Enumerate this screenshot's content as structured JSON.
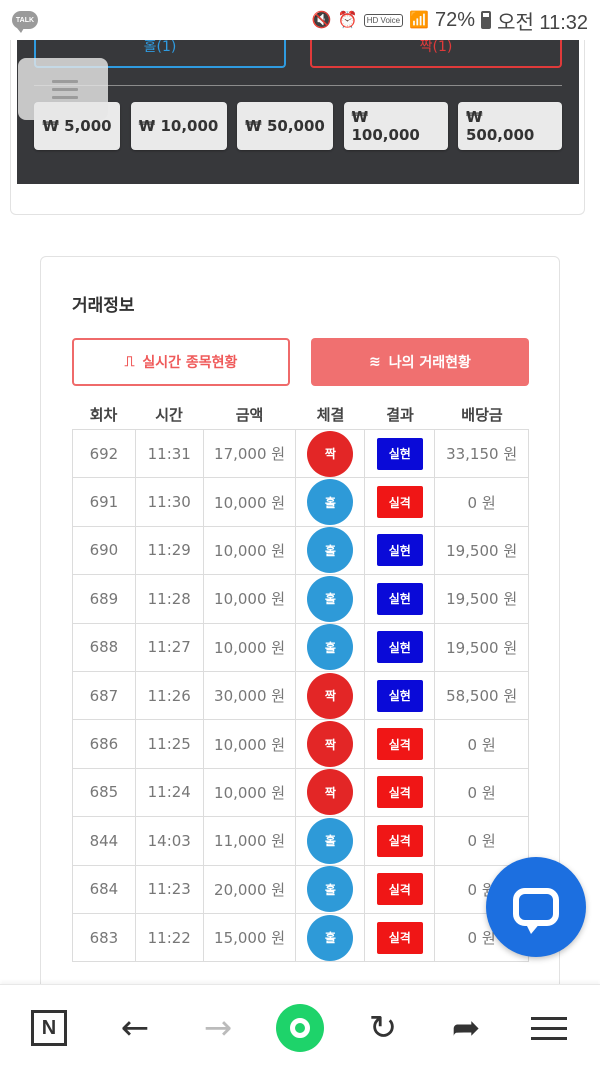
{
  "status_bar": {
    "app_badge": "TALK",
    "hd_label": "HD Voice",
    "battery": "72%",
    "time": "오전 11:32"
  },
  "bet_panel": {
    "odd_label": "홀(1)",
    "even_label": "짝(1)",
    "amounts": [
      "₩ 5,000",
      "₩ 10,000",
      "₩ 50,000",
      "₩ 100,000",
      "₩ 500,000"
    ]
  },
  "trade_info": {
    "title": "거래정보",
    "tab_live": "실시간 종목현황",
    "tab_mine": "나의 거래현황",
    "columns": [
      "회차",
      "시간",
      "금액",
      "체결",
      "결과",
      "배당금"
    ],
    "rows": [
      {
        "round": "692",
        "time": "11:31",
        "amount": "17,000 원",
        "pick": "짝",
        "result": "실현",
        "payout": "33,150 원"
      },
      {
        "round": "691",
        "time": "11:30",
        "amount": "10,000 원",
        "pick": "홀",
        "result": "실격",
        "payout": "0 원"
      },
      {
        "round": "690",
        "time": "11:29",
        "amount": "10,000 원",
        "pick": "홀",
        "result": "실현",
        "payout": "19,500 원"
      },
      {
        "round": "689",
        "time": "11:28",
        "amount": "10,000 원",
        "pick": "홀",
        "result": "실현",
        "payout": "19,500 원"
      },
      {
        "round": "688",
        "time": "11:27",
        "amount": "10,000 원",
        "pick": "홀",
        "result": "실현",
        "payout": "19,500 원"
      },
      {
        "round": "687",
        "time": "11:26",
        "amount": "30,000 원",
        "pick": "짝",
        "result": "실현",
        "payout": "58,500 원"
      },
      {
        "round": "686",
        "time": "11:25",
        "amount": "10,000 원",
        "pick": "짝",
        "result": "실격",
        "payout": "0 원"
      },
      {
        "round": "685",
        "time": "11:24",
        "amount": "10,000 원",
        "pick": "짝",
        "result": "실격",
        "payout": "0 원"
      },
      {
        "round": "844",
        "time": "14:03",
        "amount": "11,000 원",
        "pick": "홀",
        "result": "실격",
        "payout": "0 원"
      },
      {
        "round": "684",
        "time": "11:23",
        "amount": "20,000 원",
        "pick": "홀",
        "result": "실격",
        "payout": "0 원"
      },
      {
        "round": "683",
        "time": "11:22",
        "amount": "15,000 원",
        "pick": "홀",
        "result": "실격",
        "payout": "0 원"
      }
    ]
  },
  "colors": {
    "odd": "#2e9ad8",
    "even": "#e32626",
    "win": "#0a0ad8",
    "lose": "#f01616",
    "tab_accent": "#f07070",
    "chat": "#1c6fe0",
    "nav_green": "#1ed36a"
  },
  "bottom_nav": {
    "home_letter": "N",
    "icons": [
      "naver-n-icon",
      "back-arrow-icon",
      "forward-arrow-icon",
      "green-home-icon",
      "refresh-icon",
      "share-icon",
      "menu-icon"
    ]
  }
}
